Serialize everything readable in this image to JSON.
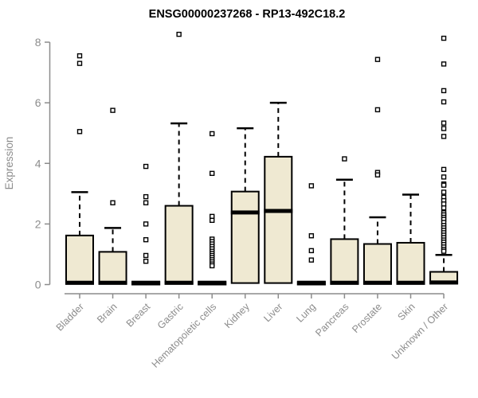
{
  "colors": {
    "background": "#ffffff",
    "box_fill": "#EFE9D2",
    "box_stroke": "#000000",
    "median": "#000000",
    "whisker": "#000000",
    "outlier_fill": "#ffffff",
    "outlier_stroke": "#000000",
    "axis": "#8C8C8C",
    "axis_text": "#8C8C8C",
    "title": "#000000"
  },
  "chart_data": {
    "type": "boxplot",
    "title": "ENSG00000237268 - RP13-492C18.2",
    "xlabel": "",
    "ylabel": "Expression",
    "ylim": [
      0,
      8
    ],
    "yticks": [
      0,
      2,
      4,
      6,
      8
    ],
    "grid": false,
    "legend": "none",
    "categories": [
      "Bladder",
      "Brain",
      "Breast",
      "Gastric",
      "Hematopoietic cells",
      "Kidney",
      "Liver",
      "Lung",
      "Pancreas",
      "Prostate",
      "Skin",
      "Unknown / Other"
    ],
    "groups": [
      {
        "label": "Bladder",
        "q1": 0.02,
        "median": 0.06,
        "q3": 1.62,
        "whisker_low": 0,
        "whisker_high": 3.05,
        "outliers": [
          7.55,
          7.3,
          5.05
        ]
      },
      {
        "label": "Brain",
        "q1": 0.02,
        "median": 0.06,
        "q3": 1.08,
        "whisker_low": 0,
        "whisker_high": 1.87,
        "outliers": [
          5.75,
          2.7
        ]
      },
      {
        "label": "Breast",
        "q1": 0,
        "median": 0.04,
        "q3": 0.1,
        "whisker_low": 0,
        "whisker_high": 0.1,
        "outliers": [
          3.9,
          2.9,
          2.7,
          2.0,
          1.48,
          0.96,
          0.77
        ]
      },
      {
        "label": "Gastric",
        "q1": 0.02,
        "median": 0.06,
        "q3": 2.6,
        "whisker_low": 0,
        "whisker_high": 5.32,
        "outliers": [
          8.26
        ]
      },
      {
        "label": "Hematopoietic cells",
        "q1": 0,
        "median": 0.04,
        "q3": 0.1,
        "whisker_low": 0,
        "whisker_high": 0.1,
        "outliers": [
          4.98,
          3.67,
          2.25,
          2.12,
          1.5,
          1.42,
          1.34,
          1.26,
          1.18,
          1.1,
          1.03,
          0.96,
          0.89,
          0.82,
          0.75,
          0.68,
          0.62
        ]
      },
      {
        "label": "Kidney",
        "q1": 0.05,
        "median": 2.38,
        "q3": 3.07,
        "whisker_low": 0,
        "whisker_high": 5.16,
        "outliers": []
      },
      {
        "label": "Liver",
        "q1": 0.05,
        "median": 2.43,
        "q3": 4.22,
        "whisker_low": 0,
        "whisker_high": 6.0,
        "outliers": []
      },
      {
        "label": "Lung",
        "q1": 0,
        "median": 0.04,
        "q3": 0.1,
        "whisker_low": 0,
        "whisker_high": 0.1,
        "outliers": [
          3.26,
          1.61,
          1.12,
          0.81
        ]
      },
      {
        "label": "Pancreas",
        "q1": 0.02,
        "median": 0.06,
        "q3": 1.5,
        "whisker_low": 0,
        "whisker_high": 3.46,
        "outliers": [
          4.15
        ]
      },
      {
        "label": "Prostate",
        "q1": 0.02,
        "median": 0.06,
        "q3": 1.34,
        "whisker_low": 0,
        "whisker_high": 2.22,
        "outliers": [
          7.43,
          5.77,
          3.7,
          3.62
        ]
      },
      {
        "label": "Skin",
        "q1": 0.02,
        "median": 0.06,
        "q3": 1.38,
        "whisker_low": 0,
        "whisker_high": 2.97,
        "outliers": []
      },
      {
        "label": "Unknown / Other",
        "q1": 0.03,
        "median": 0.07,
        "q3": 0.42,
        "whisker_low": 0,
        "whisker_high": 0.98,
        "outliers": [
          8.13,
          7.28,
          6.4,
          6.03,
          5.33,
          5.15,
          4.89,
          3.8,
          3.55,
          3.32,
          3.28,
          3.05,
          2.88,
          2.77,
          2.66,
          2.53,
          2.37,
          2.3,
          2.22,
          2.15,
          2.05,
          1.95,
          1.87,
          1.79,
          1.71,
          1.63,
          1.55,
          1.47,
          1.4,
          1.32,
          1.24,
          1.16,
          1.1
        ]
      }
    ]
  }
}
